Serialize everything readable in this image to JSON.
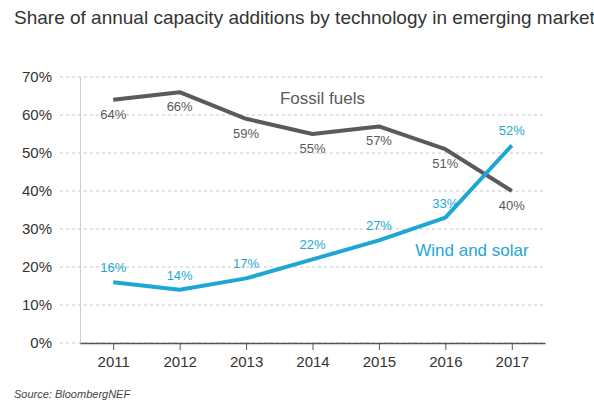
{
  "chart_data": {
    "type": "line",
    "title": "Share of annual capacity additions by technology in emerging markets",
    "source": "Source: BloombergNEF",
    "categories": [
      "2011",
      "2012",
      "2013",
      "2014",
      "2015",
      "2016",
      "2017"
    ],
    "series": [
      {
        "name": "Fossil fuels",
        "color": "#5a5a5a",
        "values": [
          64,
          66,
          59,
          55,
          57,
          51,
          40
        ],
        "value_labels": [
          "64%",
          "66%",
          "59%",
          "55%",
          "57%",
          "51%",
          "40%"
        ]
      },
      {
        "name": "Wind and solar",
        "color": "#1ea7d4",
        "values": [
          16,
          14,
          17,
          22,
          27,
          33,
          52
        ],
        "value_labels": [
          "16%",
          "14%",
          "17%",
          "22%",
          "27%",
          "33%",
          "52%"
        ]
      }
    ],
    "ylim": [
      0,
      70
    ],
    "yticks": [
      {
        "value": 0,
        "label": "0%"
      },
      {
        "value": 10,
        "label": "10%"
      },
      {
        "value": 20,
        "label": "20%"
      },
      {
        "value": 30,
        "label": "30%"
      },
      {
        "value": 40,
        "label": "40%"
      },
      {
        "value": 50,
        "label": "50%"
      },
      {
        "value": 60,
        "label": "60%"
      },
      {
        "value": 70,
        "label": "70%"
      }
    ],
    "grid": true,
    "data_labels": true
  }
}
